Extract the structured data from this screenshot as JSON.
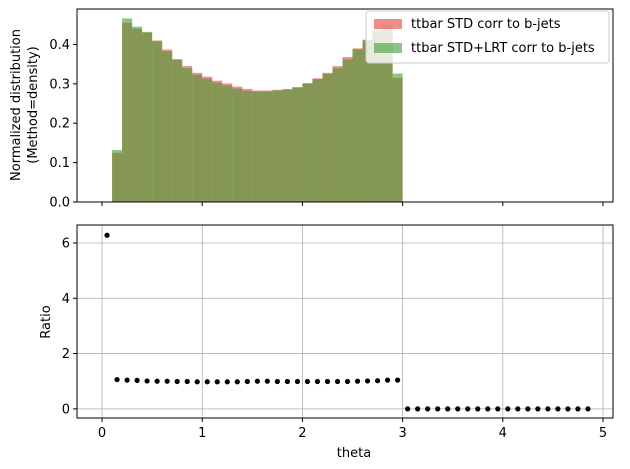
{
  "chart_data": [
    {
      "type": "bar",
      "panel": "top",
      "ylabel_line1": "Normalized distribution",
      "ylabel_line2": "(Method=density)",
      "xlabel": "",
      "xlim": [
        -0.25,
        5.1
      ],
      "ylim": [
        0,
        0.49
      ],
      "yticks": [
        0.0,
        0.1,
        0.2,
        0.3,
        0.4
      ],
      "ytick_labels": [
        "0.0",
        "0.1",
        "0.2",
        "0.3",
        "0.4"
      ],
      "xticks": [
        0,
        1,
        2,
        3,
        4,
        5
      ],
      "grid": false,
      "legend_position": "top-right",
      "bin_edges": [
        0.1,
        0.2,
        0.3,
        0.4,
        0.5,
        0.6,
        0.7,
        0.8,
        0.9,
        1.0,
        1.1,
        1.2,
        1.3,
        1.4,
        1.5,
        1.6,
        1.7,
        1.8,
        1.9,
        2.0,
        2.1,
        2.2,
        2.3,
        2.4,
        2.5,
        2.6,
        2.7,
        2.8,
        2.9,
        3.0
      ],
      "series": [
        {
          "name": "ttbar STD corr to b-jets",
          "color": "#e8413a",
          "values": [
            0.125,
            0.455,
            0.44,
            0.43,
            0.41,
            0.387,
            0.363,
            0.345,
            0.328,
            0.318,
            0.308,
            0.301,
            0.293,
            0.287,
            0.283,
            0.283,
            0.285,
            0.287,
            0.292,
            0.302,
            0.314,
            0.328,
            0.345,
            0.368,
            0.39,
            0.41,
            0.432,
            0.44,
            0.315
          ]
        },
        {
          "name": "ttbar STD+LRT corr to b-jets",
          "color": "#3e9e32",
          "values": [
            0.132,
            0.466,
            0.445,
            0.432,
            0.408,
            0.383,
            0.36,
            0.34,
            0.323,
            0.313,
            0.303,
            0.296,
            0.288,
            0.282,
            0.28,
            0.281,
            0.283,
            0.285,
            0.29,
            0.3,
            0.312,
            0.325,
            0.34,
            0.362,
            0.388,
            0.412,
            0.438,
            0.45,
            0.326
          ]
        }
      ]
    },
    {
      "type": "scatter",
      "panel": "bottom",
      "xlabel": "theta",
      "ylabel": "Ratio",
      "xlim": [
        -0.25,
        5.1
      ],
      "ylim": [
        -0.33,
        6.65
      ],
      "xticks": [
        0,
        1,
        2,
        3,
        4,
        5
      ],
      "xtick_labels": [
        "0",
        "1",
        "2",
        "3",
        "4",
        "5"
      ],
      "yticks": [
        0,
        2,
        4,
        6
      ],
      "ytick_labels": [
        "0",
        "2",
        "4",
        "6"
      ],
      "grid": true,
      "color": "#000000",
      "x": [
        0.05,
        0.15,
        0.25,
        0.35,
        0.45,
        0.55,
        0.65,
        0.75,
        0.85,
        0.95,
        1.05,
        1.15,
        1.25,
        1.35,
        1.45,
        1.55,
        1.65,
        1.75,
        1.85,
        1.95,
        2.05,
        2.15,
        2.25,
        2.35,
        2.45,
        2.55,
        2.65,
        2.75,
        2.85,
        2.95,
        3.05,
        3.15,
        3.25,
        3.35,
        3.45,
        3.55,
        3.65,
        3.75,
        3.85,
        3.95,
        4.05,
        4.15,
        4.25,
        4.35,
        4.45,
        4.55,
        4.65,
        4.75,
        4.85
      ],
      "y": [
        6.28,
        1.06,
        1.04,
        1.03,
        1.01,
        1.0,
        1.0,
        0.99,
        0.99,
        0.98,
        0.98,
        0.98,
        0.98,
        0.98,
        0.99,
        1.0,
        1.0,
        0.99,
        0.99,
        0.99,
        0.99,
        0.99,
        0.99,
        0.99,
        0.99,
        1.0,
        1.01,
        1.02,
        1.04,
        1.04,
        0.0,
        0.0,
        0.0,
        0.0,
        0.0,
        0.0,
        0.0,
        0.0,
        0.0,
        0.0,
        0.0,
        0.0,
        0.0,
        0.0,
        0.0,
        0.0,
        0.0,
        0.0,
        0.0
      ]
    }
  ]
}
